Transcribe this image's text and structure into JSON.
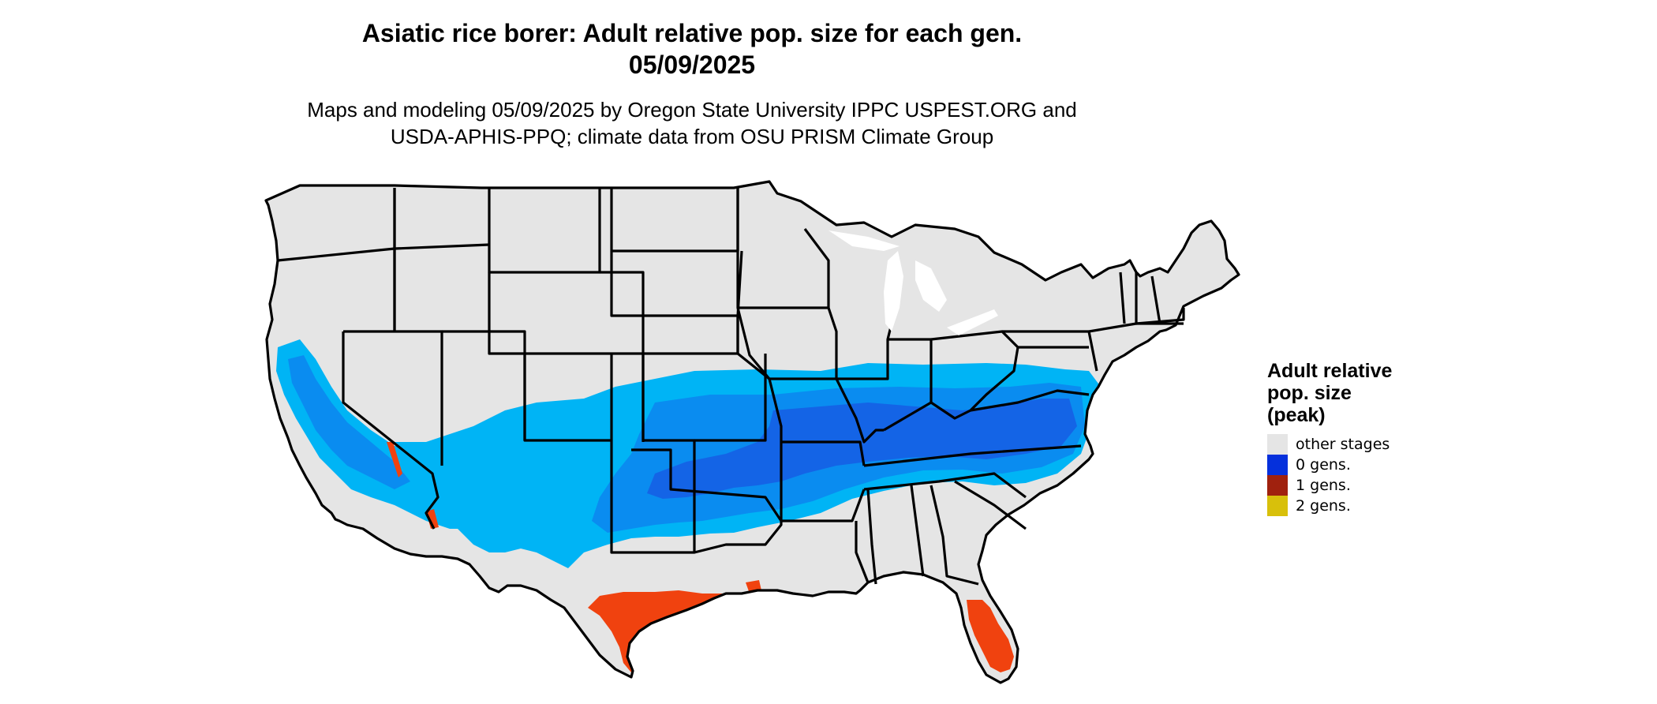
{
  "title_line1": "Asiatic rice borer: Adult relative pop. size for each gen.",
  "title_line2": "05/09/2025",
  "subtitle_line1": "Maps and modeling 05/09/2025 by Oregon State University IPPC USPEST.ORG and",
  "subtitle_line2": "USDA-APHIS-PPQ; climate data from OSU PRISM Climate Group",
  "legend": {
    "title_line1": "Adult relative",
    "title_line2": "pop. size",
    "title_line3": "(peak)",
    "items": [
      {
        "label": "other stages",
        "color": "#E5E5E5"
      },
      {
        "label": "0 gens.",
        "color": "#0530DC"
      },
      {
        "label": "1 gens.",
        "color": "#A0210E"
      },
      {
        "label": "2 gens.",
        "color": "#D8C00B"
      }
    ]
  },
  "map_colors": {
    "land": "#E5E5E5",
    "border": "#000000",
    "blue_light": "#00B4F5",
    "blue_mid": "#0A8CF0",
    "blue_dark": "#1464E6",
    "red": "#F0420F",
    "red_dark": "#DC3C0A"
  }
}
